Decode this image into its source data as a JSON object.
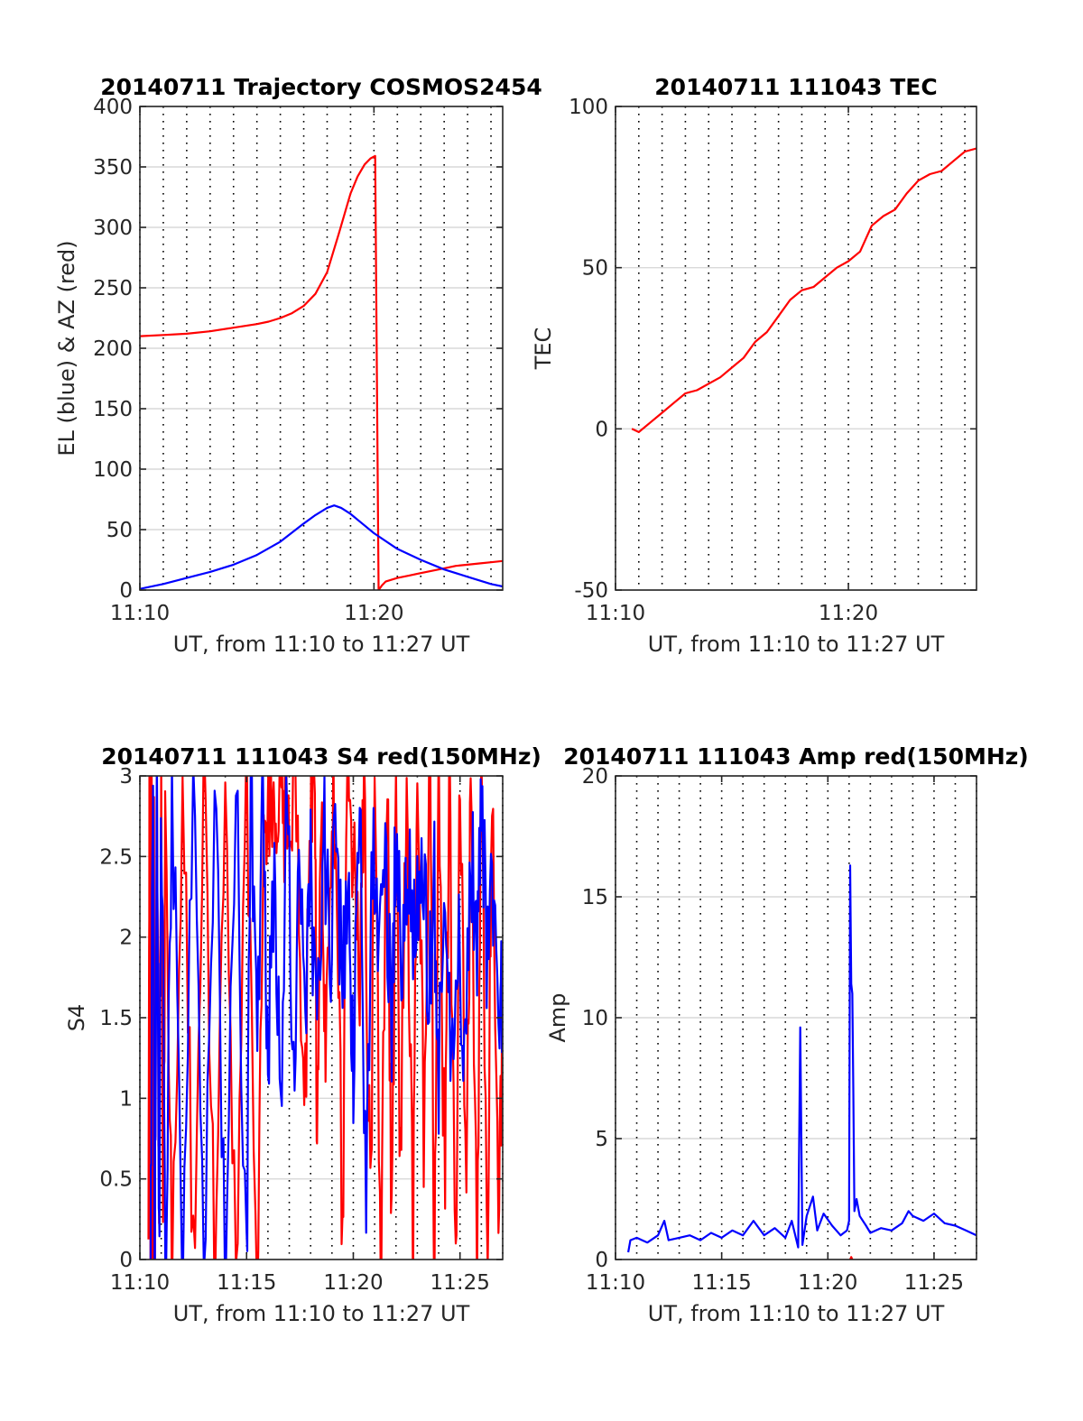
{
  "colors": {
    "red": "#ff0000",
    "blue": "#0000ff",
    "axis": "#262626",
    "grid": "#d9d9d9"
  },
  "chart_data": [
    {
      "type": "line",
      "title": "20140711 Trajectory COSMOS2454",
      "xlabel": "UT, from 11:10 to 11:27 UT",
      "ylabel": "EL (blue) & AZ (red)",
      "xlim": [
        0,
        15.5
      ],
      "ylim": [
        0,
        400
      ],
      "x_ticks": [
        {
          "value": 0,
          "label": "11:10"
        },
        {
          "value": 10,
          "label": "11:20"
        }
      ],
      "y_ticks": [
        {
          "value": 0,
          "label": "0"
        },
        {
          "value": 50,
          "label": "50"
        },
        {
          "value": 100,
          "label": "100"
        },
        {
          "value": 150,
          "label": "150"
        },
        {
          "value": 200,
          "label": "200"
        },
        {
          "value": 250,
          "label": "250"
        },
        {
          "value": 300,
          "label": "300"
        },
        {
          "value": 350,
          "label": "350"
        },
        {
          "value": 400,
          "label": "400"
        }
      ],
      "series": [
        {
          "color": "#ff0000",
          "x": [
            0,
            1,
            2,
            3,
            4,
            5,
            5.5,
            6,
            6.5,
            7,
            7.5,
            8,
            8.5,
            9,
            9.3,
            9.6,
            9.85,
            10.05,
            10.2,
            10.35,
            10.5,
            11,
            11.5,
            12,
            12.5,
            13,
            13.5,
            14,
            14.5,
            15,
            15.5
          ],
          "y": [
            210,
            211,
            212,
            214,
            217,
            220,
            222,
            225,
            229,
            235,
            245,
            263,
            295,
            328,
            342,
            352,
            357,
            359,
            0,
            4,
            7,
            10,
            12,
            14,
            16,
            18,
            20,
            21,
            22,
            23,
            24
          ]
        },
        {
          "color": "#0000ff",
          "x": [
            0,
            1,
            2,
            3,
            4,
            5,
            6,
            7,
            7.5,
            8,
            8.3,
            8.6,
            9,
            9.5,
            10,
            11,
            12,
            13,
            14,
            15,
            15.5
          ],
          "y": [
            1,
            5,
            10,
            15,
            21,
            29,
            40,
            55,
            62,
            68,
            70,
            68,
            63,
            55,
            47,
            34,
            25,
            17,
            11,
            5,
            3
          ]
        }
      ]
    },
    {
      "type": "line",
      "title": "20140711 111043 TEC",
      "xlabel": "UT, from 11:10 to 11:27 UT",
      "ylabel": "TEC",
      "xlim": [
        0,
        15.5
      ],
      "ylim": [
        -50,
        100
      ],
      "x_ticks": [
        {
          "value": 0,
          "label": "11:10"
        },
        {
          "value": 10,
          "label": "11:20"
        }
      ],
      "y_ticks": [
        {
          "value": -50,
          "label": "-50"
        },
        {
          "value": 0,
          "label": "0"
        },
        {
          "value": 50,
          "label": "50"
        },
        {
          "value": 100,
          "label": "100"
        }
      ],
      "series": [
        {
          "color": "#ff0000",
          "x": [
            0.7,
            1.0,
            1.5,
            2,
            2.5,
            3,
            3.5,
            4,
            4.5,
            5,
            5.5,
            6,
            6.5,
            7,
            7.5,
            8,
            8.5,
            9,
            9.5,
            10,
            10.5,
            11,
            11.5,
            12,
            12.5,
            13,
            13.5,
            14,
            14.5,
            15,
            15.5
          ],
          "y": [
            0,
            -1,
            2,
            5,
            8,
            11,
            12,
            14,
            16,
            19,
            22,
            27,
            30,
            35,
            40,
            43,
            44,
            47,
            50,
            52,
            55,
            63,
            66,
            68,
            73,
            77,
            79,
            80,
            83,
            86,
            87
          ]
        }
      ]
    },
    {
      "type": "line",
      "title": "20140711 111043 S4 red(150MHz)",
      "xlabel": "UT, from 11:10 to 11:27 UT",
      "ylabel": "S4",
      "xlim": [
        0,
        17
      ],
      "ylim": [
        0,
        3
      ],
      "x_ticks": [
        {
          "value": 0,
          "label": "11:10"
        },
        {
          "value": 5,
          "label": "11:15"
        },
        {
          "value": 10,
          "label": "11:20"
        },
        {
          "value": 15,
          "label": "11:25"
        }
      ],
      "y_ticks": [
        {
          "value": 0,
          "label": "0"
        },
        {
          "value": 0.5,
          "label": "0.5"
        },
        {
          "value": 1,
          "label": "1"
        },
        {
          "value": 1.5,
          "label": "1.5"
        },
        {
          "value": 2,
          "label": "2"
        },
        {
          "value": 2.5,
          "label": "2.5"
        },
        {
          "value": 3,
          "label": "3"
        }
      ],
      "series": [
        {
          "color": "#ff0000",
          "x": [
            0.4,
            0.45,
            0.5,
            0.55,
            0.6,
            0.65,
            0.7,
            0.8,
            0.9,
            1.0,
            1.1,
            1.2,
            1.5,
            2.0,
            2.5,
            3.0,
            3.5,
            4.0,
            4.5,
            5.0,
            5.5,
            5.8,
            6.0,
            6.2,
            6.4,
            6.6,
            6.8,
            7.0,
            7.4,
            7.7,
            8.0,
            8.2,
            8.3,
            8.5,
            8.7,
            9.0,
            9.2,
            9.5,
            9.7,
            10.0,
            10.3,
            10.5,
            10.8,
            11.0,
            11.3,
            11.6,
            11.8,
            12.0,
            12.2,
            12.5,
            12.8,
            13.0,
            13.3,
            13.6,
            13.8,
            14.0,
            14.3,
            14.5,
            14.8,
            15.0,
            15.3,
            15.5,
            15.8,
            16.0,
            16.3,
            16.5,
            16.8,
            17.0
          ],
          "y": [
            0,
            3,
            0,
            3,
            0,
            3,
            0,
            3,
            0,
            3,
            0,
            3,
            0,
            3,
            0,
            3,
            0,
            3,
            0,
            3,
            0,
            3,
            2.8,
            3,
            2.9,
            3,
            2.7,
            3,
            2.8,
            0.6,
            3,
            2.9,
            0.3,
            3,
            1.0,
            3,
            2.6,
            0,
            3,
            2.4,
            1.8,
            3,
            0.2,
            3,
            0,
            3,
            0,
            3,
            0.5,
            3,
            0,
            3,
            0.8,
            3,
            0,
            3,
            0.3,
            3,
            0,
            3,
            0.2,
            3,
            0,
            3,
            0,
            3,
            0,
            1.6
          ],
          "mode": "dense"
        },
        {
          "color": "#0000ff",
          "x": [
            0.5,
            0.6,
            0.7,
            0.8,
            0.9,
            1.0,
            1.2,
            1.5,
            2.0,
            2.5,
            3.0,
            3.5,
            4.0,
            4.5,
            5.0,
            5.2,
            5.5,
            5.8,
            6.0,
            6.3,
            6.6,
            6.9,
            7.2,
            7.5,
            7.8,
            8.0,
            8.3,
            8.6,
            8.9,
            9.2,
            9.5,
            9.8,
            10.0,
            10.3,
            10.6,
            10.9,
            11.2,
            11.5,
            11.8,
            12.0,
            12.3,
            12.6,
            12.9,
            13.2,
            13.5,
            13.8,
            14.0,
            14.3,
            14.6,
            14.9,
            15.2,
            15.5,
            15.8,
            16.0,
            16.3,
            16.6,
            16.9,
            17.0
          ],
          "y": [
            0,
            3,
            0,
            3,
            0,
            3,
            0,
            3,
            0,
            3,
            0,
            3,
            0,
            3,
            0,
            3,
            1.4,
            3,
            1.1,
            2.6,
            1.0,
            2.9,
            1.2,
            2.7,
            1.6,
            2.4,
            1.3,
            2.8,
            1.9,
            2.6,
            1.7,
            2.2,
            1.1,
            2.8,
            0.4,
            2.6,
            1.8,
            2.4,
            1.5,
            2.7,
            1.6,
            2.5,
            1.9,
            2.8,
            1.7,
            2.3,
            1.1,
            2.2,
            1.3,
            2.1,
            1.2,
            2.6,
            2.0,
            3,
            1.8,
            2.5,
            1.6,
            1.5
          ],
          "mode": "dense"
        }
      ]
    },
    {
      "type": "line",
      "title": "20140711 111043 Amp red(150MHz)",
      "xlabel": "UT, from 11:10 to 11:27 UT",
      "ylabel": "Amp",
      "xlim": [
        0,
        17
      ],
      "ylim": [
        0,
        20
      ],
      "x_ticks": [
        {
          "value": 0,
          "label": "11:10"
        },
        {
          "value": 5,
          "label": "11:15"
        },
        {
          "value": 10,
          "label": "11:20"
        },
        {
          "value": 15,
          "label": "11:25"
        }
      ],
      "y_ticks": [
        {
          "value": 0,
          "label": "0"
        },
        {
          "value": 5,
          "label": "5"
        },
        {
          "value": 10,
          "label": "10"
        },
        {
          "value": 15,
          "label": "15"
        },
        {
          "value": 20,
          "label": "20"
        }
      ],
      "series": [
        {
          "color": "#ff0000",
          "x": [
            11.05,
            11.1,
            11.15
          ],
          "y": [
            0,
            0.1,
            0
          ]
        },
        {
          "color": "#0000ff",
          "x": [
            0.6,
            0.7,
            1.0,
            1.5,
            2.0,
            2.3,
            2.5,
            3.0,
            3.5,
            4.0,
            4.5,
            5.0,
            5.5,
            6.0,
            6.5,
            7.0,
            7.5,
            8.0,
            8.3,
            8.6,
            8.7,
            8.8,
            9.0,
            9.3,
            9.5,
            9.8,
            10.2,
            10.6,
            10.9,
            11.0,
            11.05,
            11.1,
            11.15,
            11.2,
            11.25,
            11.35,
            11.5,
            11.8,
            12.0,
            12.5,
            13.0,
            13.5,
            13.8,
            14.0,
            14.5,
            15.0,
            15.5,
            16.0,
            16.5,
            17.0
          ],
          "y": [
            0.3,
            0.8,
            0.9,
            0.7,
            1.0,
            1.6,
            0.8,
            0.9,
            1.0,
            0.8,
            1.1,
            0.9,
            1.2,
            1.0,
            1.6,
            1.0,
            1.3,
            0.9,
            1.6,
            0.5,
            9.6,
            0.6,
            1.8,
            2.6,
            1.2,
            1.9,
            1.4,
            1.0,
            1.2,
            1.6,
            16.3,
            11.4,
            11.0,
            7.0,
            2.0,
            2.5,
            1.8,
            1.4,
            1.1,
            1.3,
            1.2,
            1.5,
            2.0,
            1.8,
            1.6,
            1.9,
            1.5,
            1.4,
            1.2,
            1.0
          ]
        }
      ]
    }
  ]
}
